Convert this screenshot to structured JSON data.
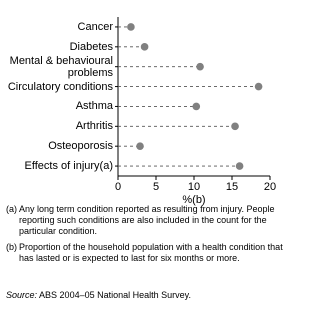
{
  "chart_data": {
    "type": "dot",
    "categories": [
      "Cancer",
      "Diabetes",
      "Mental & behavioural problems",
      "Circulatory conditions",
      "Asthma",
      "Arthritis",
      "Osteoporosis",
      "Effects of injury(a)"
    ],
    "values": [
      1.7,
      3.5,
      10.8,
      18.5,
      10.3,
      15.4,
      2.9,
      16.0
    ],
    "color": "#808080",
    "xlim": [
      0,
      20
    ],
    "xticks": [
      0,
      5,
      10,
      15,
      20
    ],
    "x_label": "%(b)"
  },
  "footnotes": [
    {
      "marker": "(a)",
      "text": "Any long term condition reported as resulting from injury. People reporting such conditions are also included in the count for the particular condition."
    },
    {
      "marker": "(b)",
      "text": "Proportion of the household population with a health condition that has lasted or is expected to last for six months or more."
    }
  ],
  "source_label": "Source:",
  "source": "ABS 2004–05 National Health Survey."
}
